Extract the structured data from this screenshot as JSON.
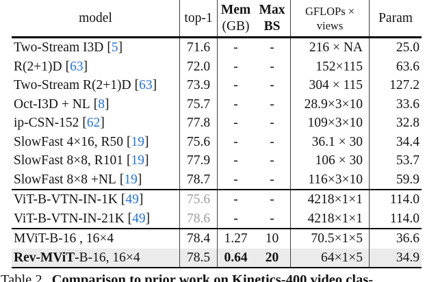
{
  "symbols": {
    "lbracket": "[",
    "rbracket": "]"
  },
  "colors": {
    "citation_blue": "#2472cd",
    "muted_gray_value": "#9c9c9c",
    "highlight_row_bg": "#ebebeb",
    "rule_black": "#000000"
  },
  "table": {
    "header": {
      "model": "model",
      "top1": "top-1",
      "mem_top": "Mem",
      "mem_bottom": "(GB)",
      "max_top": "Max",
      "max_bottom": "BS",
      "gflops_top": "GFLOPs ×",
      "gflops_bottom": "views",
      "param": "Param"
    },
    "rows": [
      {
        "model": "Two-Stream I3D",
        "cite": "5",
        "top1": "71.6",
        "mem": "-",
        "bs": "-",
        "gflops": "216 × NA",
        "param": "25.0"
      },
      {
        "model": "R(2+1)D",
        "cite": "63",
        "top1": "72.0",
        "mem": "-",
        "bs": "-",
        "gflops": "152×115",
        "param": "63.6"
      },
      {
        "model": "Two-Stream R(2+1)D",
        "cite": "63",
        "top1": "73.9",
        "mem": "-",
        "bs": "-",
        "gflops": "304 × 115",
        "param": "127.2"
      },
      {
        "model": "Oct-I3D + NL",
        "cite": "8",
        "top1": "75.7",
        "mem": "-",
        "bs": "-",
        "gflops": "28.9×3×10",
        "param": "33.6"
      },
      {
        "model": "ip-CSN-152",
        "cite": "62",
        "top1": "77.8",
        "mem": "-",
        "bs": "-",
        "gflops": "109×3×10",
        "param": "32.8"
      },
      {
        "model": "SlowFast 4×16, R50",
        "cite": "19",
        "top1": "75.6",
        "mem": "-",
        "bs": "-",
        "gflops": "36.1 × 30",
        "param": "34.4"
      },
      {
        "model": "SlowFast 8×8, R101",
        "cite": "19",
        "top1": "77.9",
        "mem": "-",
        "bs": "-",
        "gflops": "106 × 30",
        "param": "53.7"
      },
      {
        "model": "SlowFast 8×8 +NL",
        "cite": "19",
        "top1": "78.7",
        "mem": "-",
        "bs": "-",
        "gflops": "116×3×10",
        "param": "59.9"
      },
      {
        "model": "ViT-B-VTN-IN-1K",
        "cite": "49",
        "top1": "75.6",
        "mem": "-",
        "bs": "-",
        "gflops": "4218×1×1",
        "param": "114.0"
      },
      {
        "model": "ViT-B-VTN-IN-21K",
        "cite": "49",
        "top1": "78.6",
        "mem": "-",
        "bs": "-",
        "gflops": "4218×1×1",
        "param": "114.0"
      },
      {
        "model": "MViT-B-16 , 16×4",
        "top1": "78.4",
        "mem": "1.27",
        "bs": "10",
        "gflops": "70.5×1×5",
        "param": "36.6"
      },
      {
        "model_bold": "Rev-MViT",
        "model_rest": "-B-16, 16×4",
        "top1": "78.5",
        "mem": "0.64",
        "bs": "20",
        "gflops": "64×1×5",
        "param": "34.9"
      }
    ]
  },
  "caption": {
    "label": "Table 2.",
    "title": "Comparison to prior work on Kinetics-400 video clas-"
  }
}
